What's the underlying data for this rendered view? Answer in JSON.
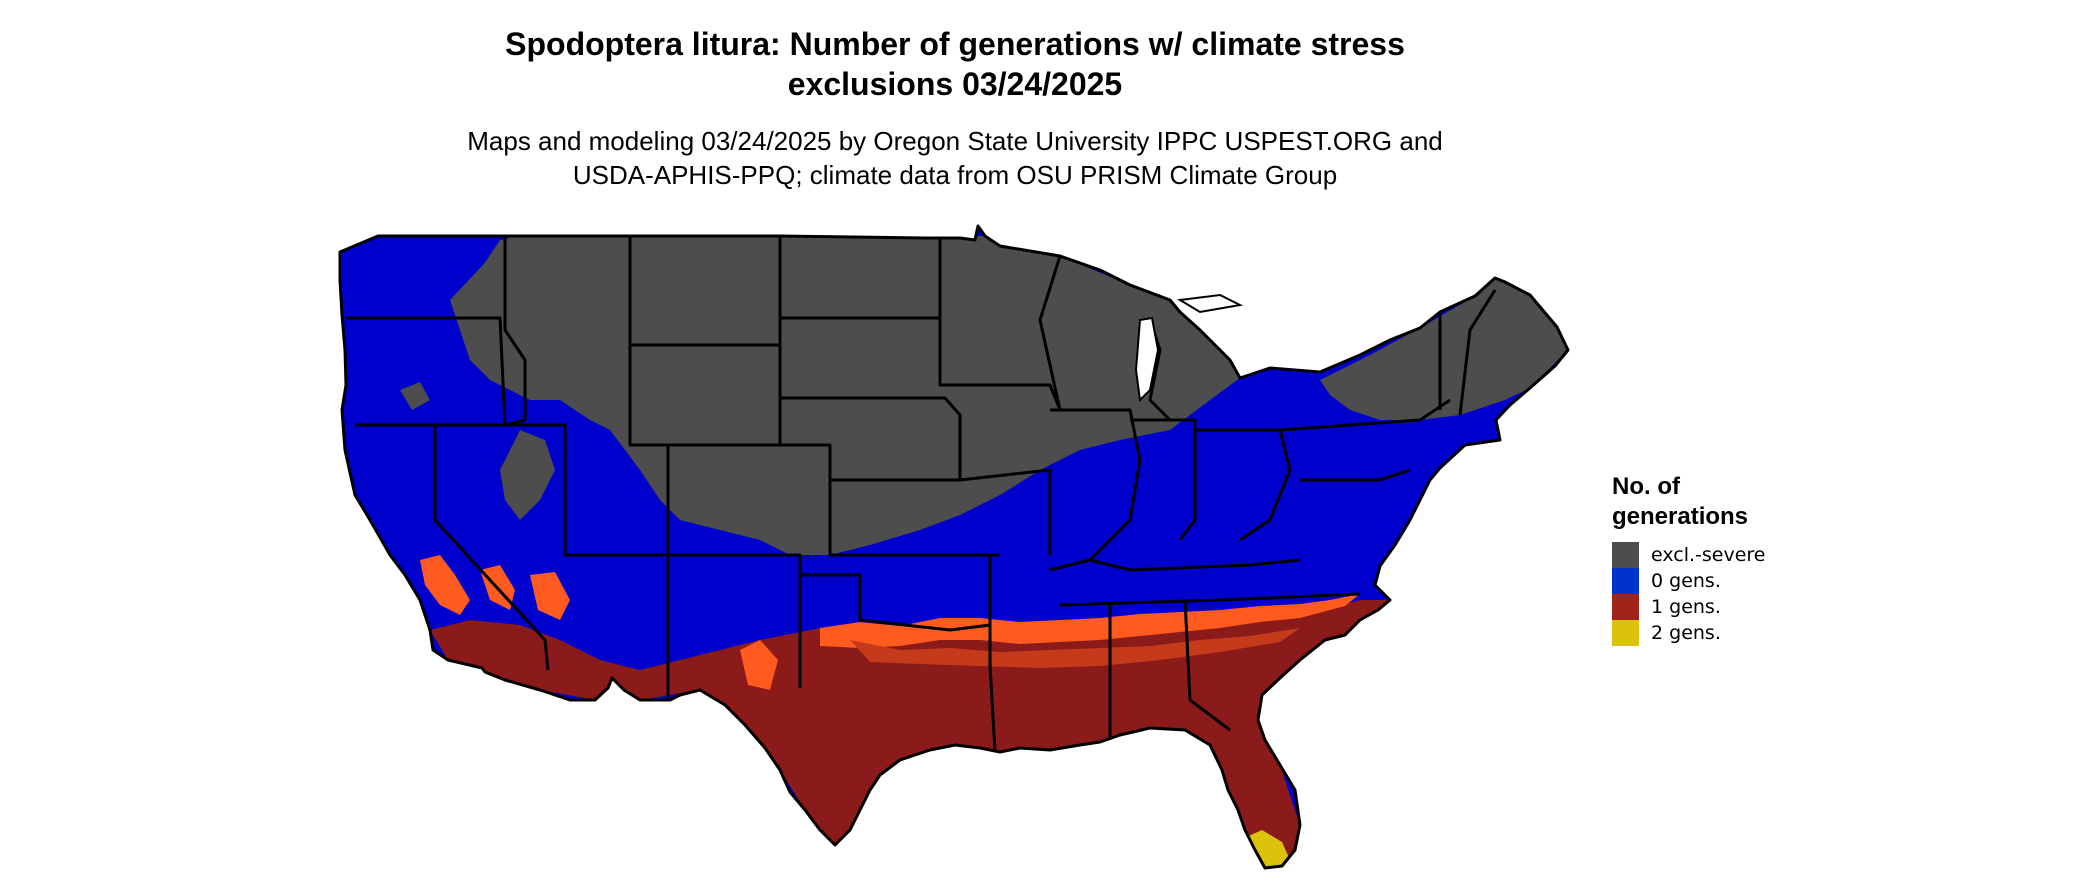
{
  "title": {
    "line1": "Spodoptera litura: Number of generations w/ climate stress",
    "line2": "exclusions 03/24/2025"
  },
  "subtitle": {
    "line1": "Maps and modeling 03/24/2025 by Oregon State University IPPC USPEST.ORG and",
    "line2": "USDA-APHIS-PPQ; climate data from OSU PRISM Climate Group"
  },
  "legend": {
    "title_line1": "No. of",
    "title_line2": "generations",
    "items": [
      {
        "label": "excl.-severe",
        "color": "#4d4d4d"
      },
      {
        "label": "0 gens.",
        "color": "#0033cc"
      },
      {
        "label": "1 gens.",
        "color": "#a02418"
      },
      {
        "label": "2 gens.",
        "color": "#dcc20a"
      }
    ]
  },
  "colors": {
    "excluded": "#4d4d4d",
    "zero_gens": "#0000cc",
    "one_gen": "#8b1a1a",
    "one_gen_edge": "#ff5a1f",
    "one_gen_mid": "#c43a1a",
    "two_gens": "#dcc20a",
    "borders": "#000000"
  }
}
